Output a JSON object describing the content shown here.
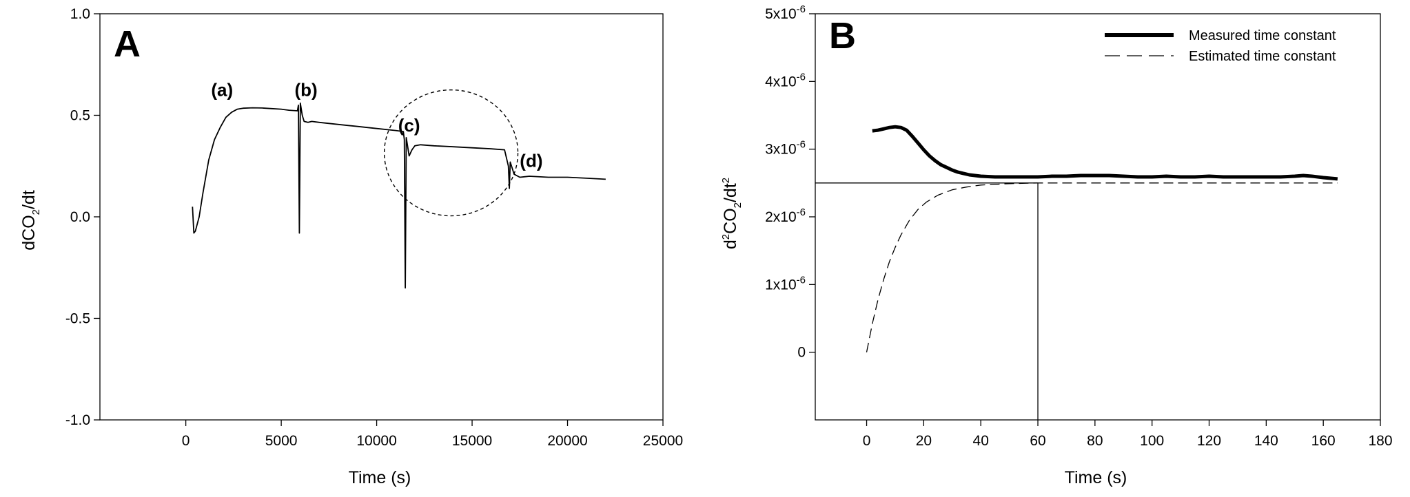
{
  "chart_data": [
    {
      "panel": "A",
      "type": "line",
      "xlabel": "Time (s)",
      "ylabel": "dCO2/dt",
      "xlim": [
        -4500,
        25000
      ],
      "ylim": [
        -1.0,
        1.0
      ],
      "x_ticks": [
        0,
        5000,
        10000,
        15000,
        20000,
        25000
      ],
      "y_ticks": [
        {
          "value": -1.0,
          "label": "-1.0"
        },
        {
          "value": -0.5,
          "label": "-0.5"
        },
        {
          "value": 0.0,
          "label": "0.0"
        },
        {
          "value": 0.5,
          "label": "0.5"
        },
        {
          "value": 1.0,
          "label": "1.0"
        }
      ],
      "grid": false,
      "series": [
        {
          "points": [
            [
              350,
              0.05
            ],
            [
              420,
              -0.08
            ],
            [
              500,
              -0.07
            ],
            [
              700,
              0.0
            ],
            [
              900,
              0.12
            ],
            [
              1200,
              0.28
            ],
            [
              1500,
              0.38
            ],
            [
              1800,
              0.44
            ],
            [
              2100,
              0.49
            ],
            [
              2400,
              0.515
            ],
            [
              2700,
              0.53
            ],
            [
              3000,
              0.535
            ],
            [
              3500,
              0.537
            ],
            [
              4000,
              0.536
            ],
            [
              4500,
              0.533
            ],
            [
              5000,
              0.53
            ],
            [
              5400,
              0.525
            ],
            [
              5850,
              0.522
            ],
            [
              5900,
              0.55
            ],
            [
              5950,
              -0.08
            ],
            [
              6000,
              0.56
            ],
            [
              6100,
              0.5
            ],
            [
              6200,
              0.47
            ],
            [
              6400,
              0.465
            ],
            [
              6600,
              0.47
            ],
            [
              7000,
              0.465
            ],
            [
              8000,
              0.455
            ],
            [
              9000,
              0.445
            ],
            [
              10000,
              0.435
            ],
            [
              11000,
              0.425
            ],
            [
              11400,
              0.42
            ],
            [
              11450,
              0.38
            ],
            [
              11500,
              -0.35
            ],
            [
              11550,
              0.39
            ],
            [
              11700,
              0.3
            ],
            [
              11850,
              0.33
            ],
            [
              12000,
              0.35
            ],
            [
              12300,
              0.355
            ],
            [
              13000,
              0.35
            ],
            [
              14000,
              0.345
            ],
            [
              15000,
              0.34
            ],
            [
              16000,
              0.335
            ],
            [
              16700,
              0.33
            ],
            [
              16900,
              0.25
            ],
            [
              16950,
              0.14
            ],
            [
              17000,
              0.27
            ],
            [
              17200,
              0.21
            ],
            [
              17500,
              0.195
            ],
            [
              18000,
              0.2
            ],
            [
              19000,
              0.195
            ],
            [
              20000,
              0.195
            ],
            [
              21000,
              0.19
            ],
            [
              22000,
              0.185
            ]
          ]
        }
      ],
      "annotations": [
        {
          "text": "(a)",
          "x": 1900,
          "y": 0.595
        },
        {
          "text": "(b)",
          "x": 6300,
          "y": 0.595
        },
        {
          "text": "(c)",
          "x": 11700,
          "y": 0.42
        },
        {
          "text": "(d)",
          "x": 18100,
          "y": 0.245
        }
      ],
      "ellipse": {
        "cx": 13900,
        "cy": 0.315,
        "rx": 3500,
        "ry": 0.31,
        "style": "dashed"
      }
    },
    {
      "panel": "B",
      "type": "line",
      "xlabel": "Time (s)",
      "ylabel": "d2CO2/dt2",
      "xlim": [
        -18,
        180
      ],
      "ylim": [
        -1e-06,
        5e-06
      ],
      "x_ticks": [
        0,
        20,
        40,
        60,
        80,
        100,
        120,
        140,
        160,
        180
      ],
      "y_ticks": [
        {
          "value": 0,
          "label": "0"
        },
        {
          "value": 1e-06,
          "label": "1x10",
          "exp": "-6"
        },
        {
          "value": 2e-06,
          "label": "2x10",
          "exp": "-6"
        },
        {
          "value": 3e-06,
          "label": "3x10",
          "exp": "-6"
        },
        {
          "value": 4e-06,
          "label": "4x10",
          "exp": "-6"
        },
        {
          "value": 5e-06,
          "label": "5x10",
          "exp": "-6"
        }
      ],
      "grid": false,
      "legend_position": "top-right",
      "series": [
        {
          "name": "Measured time constant",
          "style": "solid-thick",
          "points": [
            [
              2,
              3.27e-06
            ],
            [
              4,
              3.28e-06
            ],
            [
              6,
              3.3e-06
            ],
            [
              8,
              3.32e-06
            ],
            [
              10,
              3.33e-06
            ],
            [
              12,
              3.32e-06
            ],
            [
              14,
              3.28e-06
            ],
            [
              16,
              3.19e-06
            ],
            [
              18,
              3.09e-06
            ],
            [
              20,
              2.99e-06
            ],
            [
              22,
              2.9e-06
            ],
            [
              24,
              2.83e-06
            ],
            [
              26,
              2.77e-06
            ],
            [
              28,
              2.73e-06
            ],
            [
              30,
              2.69e-06
            ],
            [
              32,
              2.66e-06
            ],
            [
              34,
              2.64e-06
            ],
            [
              36,
              2.62e-06
            ],
            [
              38,
              2.61e-06
            ],
            [
              40,
              2.6e-06
            ],
            [
              45,
              2.59e-06
            ],
            [
              50,
              2.59e-06
            ],
            [
              55,
              2.59e-06
            ],
            [
              60,
              2.59e-06
            ],
            [
              65,
              2.6e-06
            ],
            [
              70,
              2.6e-06
            ],
            [
              75,
              2.61e-06
            ],
            [
              80,
              2.61e-06
            ],
            [
              85,
              2.61e-06
            ],
            [
              90,
              2.6e-06
            ],
            [
              95,
              2.59e-06
            ],
            [
              100,
              2.59e-06
            ],
            [
              105,
              2.6e-06
            ],
            [
              110,
              2.59e-06
            ],
            [
              115,
              2.59e-06
            ],
            [
              120,
              2.6e-06
            ],
            [
              125,
              2.59e-06
            ],
            [
              130,
              2.59e-06
            ],
            [
              135,
              2.59e-06
            ],
            [
              140,
              2.59e-06
            ],
            [
              145,
              2.59e-06
            ],
            [
              150,
              2.6e-06
            ],
            [
              153,
              2.61e-06
            ],
            [
              156,
              2.6e-06
            ],
            [
              160,
              2.58e-06
            ],
            [
              165,
              2.56e-06
            ]
          ]
        },
        {
          "name": "Estimated time constant",
          "style": "dashed",
          "points": [
            [
              0,
              0.0
            ],
            [
              2,
              4.2e-07
            ],
            [
              4,
              7.8e-07
            ],
            [
              6,
              1.08e-06
            ],
            [
              8,
              1.34e-06
            ],
            [
              10,
              1.55e-06
            ],
            [
              12,
              1.73e-06
            ],
            [
              15,
              1.95e-06
            ],
            [
              18,
              2.11e-06
            ],
            [
              21,
              2.22e-06
            ],
            [
              25,
              2.32e-06
            ],
            [
              30,
              2.4e-06
            ],
            [
              35,
              2.44e-06
            ],
            [
              40,
              2.47e-06
            ],
            [
              50,
              2.49e-06
            ],
            [
              60,
              2.5e-06
            ],
            [
              80,
              2.5e-06
            ],
            [
              100,
              2.5e-06
            ],
            [
              120,
              2.5e-06
            ],
            [
              140,
              2.5e-06
            ],
            [
              165,
              2.5e-06
            ]
          ]
        }
      ],
      "reference_lines": [
        {
          "type": "horizontal",
          "y": 2.5e-06,
          "x_from": -18,
          "x_to": 60
        },
        {
          "type": "vertical",
          "x": 60,
          "y_from": -1e-06,
          "y_to": 2.5e-06
        }
      ]
    }
  ],
  "panels": {
    "A": {
      "letter": "A",
      "xlabel": "Time (s)",
      "ylabel_main": "dCO",
      "ylabel_sub": "2",
      "ylabel_tail": "/dt"
    },
    "B": {
      "letter": "B",
      "xlabel": "Time (s)",
      "ylabel_d": "d",
      "ylabel_sup1": "2",
      "ylabel_co": "CO",
      "ylabel_sub": "2",
      "ylabel_dt": "/dt",
      "ylabel_sup2": "2"
    }
  }
}
